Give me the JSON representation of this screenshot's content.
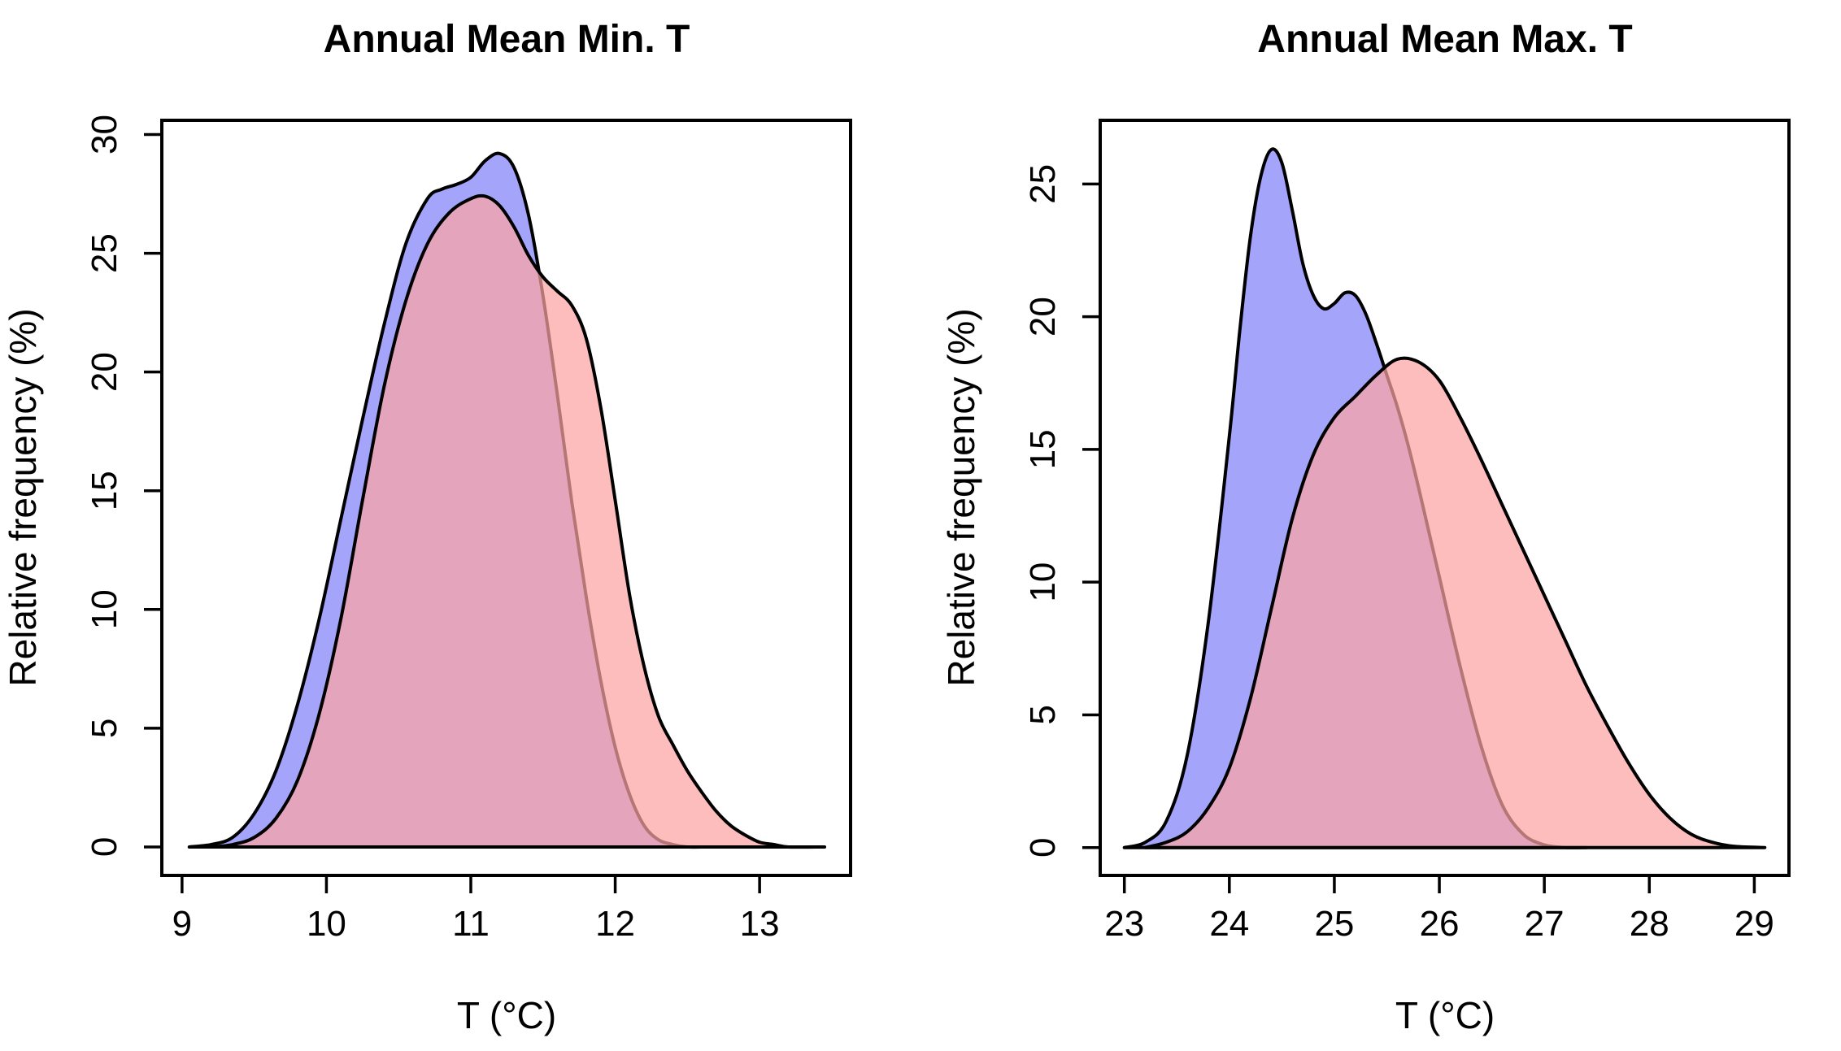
{
  "chart_data": [
    {
      "type": "area",
      "title": "Annual Mean Min. T",
      "xlabel": "T (°C)",
      "ylabel": "Relative frequency (%)",
      "xlim": [
        8.86,
        13.63
      ],
      "ylim": [
        -1.2,
        30.6
      ],
      "xticks": [
        9,
        10,
        11,
        12,
        13
      ],
      "yticks": [
        0,
        5,
        10,
        15,
        20,
        25,
        30
      ],
      "grid": false,
      "series": [
        {
          "color": "#a4a4fa",
          "x": [
            9.05,
            9.2,
            9.35,
            9.5,
            9.65,
            9.8,
            9.95,
            10.1,
            10.25,
            10.4,
            10.55,
            10.7,
            10.8,
            10.9,
            11.0,
            11.1,
            11.2,
            11.3,
            11.4,
            11.5,
            11.6,
            11.7,
            11.8,
            11.9,
            12.0,
            12.1,
            12.2,
            12.3,
            12.4,
            12.5,
            12.6,
            12.8
          ],
          "y": [
            0.0,
            0.1,
            0.4,
            1.4,
            3.2,
            6.0,
            9.6,
            13.8,
            18.0,
            22.0,
            25.4,
            27.3,
            27.7,
            27.9,
            28.2,
            28.9,
            29.2,
            28.6,
            26.6,
            23.2,
            19.0,
            14.5,
            10.5,
            7.0,
            4.2,
            2.2,
            0.9,
            0.3,
            0.1,
            0.0,
            0.0,
            0.0
          ]
        },
        {
          "color": "#fca4a4",
          "x": [
            9.2,
            9.35,
            9.5,
            9.65,
            9.8,
            9.95,
            10.1,
            10.25,
            10.4,
            10.55,
            10.7,
            10.85,
            11.0,
            11.1,
            11.2,
            11.3,
            11.4,
            11.5,
            11.6,
            11.7,
            11.8,
            11.9,
            12.0,
            12.1,
            12.2,
            12.3,
            12.4,
            12.5,
            12.6,
            12.7,
            12.8,
            12.9,
            13.0,
            13.1,
            13.2,
            13.45
          ],
          "y": [
            0.0,
            0.1,
            0.4,
            1.2,
            2.8,
            5.6,
            9.6,
            14.6,
            19.4,
            23.0,
            25.4,
            26.7,
            27.3,
            27.4,
            27.0,
            26.1,
            24.9,
            24.0,
            23.4,
            22.8,
            21.4,
            18.5,
            14.6,
            10.6,
            7.6,
            5.5,
            4.3,
            3.2,
            2.3,
            1.5,
            0.9,
            0.5,
            0.2,
            0.1,
            0.0,
            0.0
          ]
        }
      ]
    },
    {
      "type": "area",
      "title": "Annual Mean Max. T",
      "xlabel": "T (°C)",
      "ylabel": "Relative frequency (%)",
      "xlim": [
        22.77,
        29.33
      ],
      "ylim": [
        -1.05,
        27.4
      ],
      "xticks": [
        23,
        24,
        25,
        26,
        27,
        28,
        29
      ],
      "yticks": [
        0,
        5,
        10,
        15,
        20,
        25
      ],
      "grid": false,
      "series": [
        {
          "color": "#a4a4fa",
          "x": [
            23.0,
            23.2,
            23.4,
            23.6,
            23.8,
            24.0,
            24.1,
            24.2,
            24.3,
            24.4,
            24.5,
            24.6,
            24.7,
            24.8,
            24.9,
            25.0,
            25.1,
            25.2,
            25.3,
            25.4,
            25.5,
            25.6,
            25.7,
            25.8,
            25.9,
            26.0,
            26.2,
            26.4,
            26.6,
            26.8,
            27.0,
            27.2,
            27.4
          ],
          "y": [
            0.0,
            0.2,
            1.0,
            3.5,
            8.5,
            15.5,
            19.5,
            23.0,
            25.3,
            26.3,
            25.8,
            24.0,
            22.0,
            20.8,
            20.3,
            20.5,
            20.9,
            20.8,
            20.1,
            19.0,
            17.8,
            16.6,
            15.2,
            13.6,
            11.9,
            10.2,
            6.8,
            3.8,
            1.6,
            0.5,
            0.1,
            0.0,
            0.0
          ]
        },
        {
          "color": "#fca4a4",
          "x": [
            23.2,
            23.4,
            23.6,
            23.8,
            24.0,
            24.2,
            24.4,
            24.6,
            24.8,
            25.0,
            25.2,
            25.4,
            25.6,
            25.8,
            26.0,
            26.2,
            26.4,
            26.6,
            26.8,
            27.0,
            27.2,
            27.4,
            27.6,
            27.8,
            28.0,
            28.2,
            28.4,
            28.6,
            28.8,
            29.1
          ],
          "y": [
            0.0,
            0.2,
            0.6,
            1.5,
            3.0,
            5.6,
            9.0,
            12.4,
            14.8,
            16.2,
            17.0,
            17.8,
            18.4,
            18.3,
            17.6,
            16.2,
            14.6,
            12.9,
            11.2,
            9.5,
            7.8,
            6.1,
            4.6,
            3.2,
            2.0,
            1.1,
            0.5,
            0.2,
            0.05,
            0.0
          ]
        }
      ]
    }
  ]
}
